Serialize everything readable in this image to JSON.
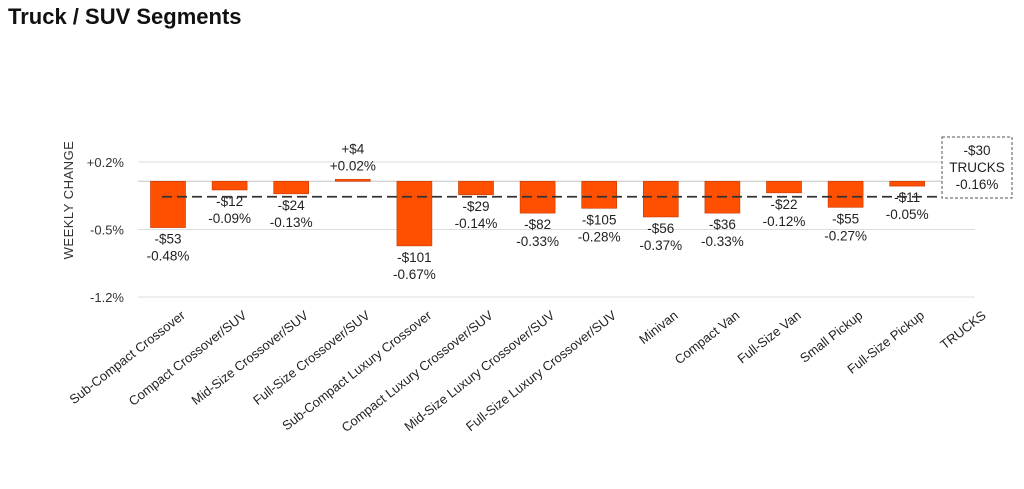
{
  "page": {
    "title": "Truck / SUV Segments"
  },
  "chart_data": {
    "type": "bar",
    "ylabel": "WEEKLY CHANGE",
    "y_ticks": [
      "+0.2%",
      "-0.5%",
      "-1.2%"
    ],
    "y_tick_values": [
      0.2,
      -0.5,
      -1.2
    ],
    "ylim": [
      -1.2,
      0.2
    ],
    "grid": true,
    "categories": [
      "Sub-Compact Crossover",
      "Compact Crossover/SUV",
      "Mid-Size Crossover/SUV",
      "Full-Size Crossover/SUV",
      "Sub-Compact Luxury Crossover",
      "Compact Luxury Crossover/SUV",
      "Mid-Size Luxury Crossover/SUV",
      "Full-Size Luxury Crossover/SUV",
      "Minivan",
      "Compact Van",
      "Full-Size Van",
      "Small Pickup",
      "Full-Size Pickup",
      "TRUCKS"
    ],
    "values": [
      -0.48,
      -0.09,
      -0.13,
      0.02,
      -0.67,
      -0.14,
      -0.33,
      -0.28,
      -0.37,
      -0.33,
      -0.12,
      -0.27,
      -0.05,
      -0.16
    ],
    "dollar_labels": [
      "-$53",
      "-$12",
      "-$24",
      "+$4",
      "-$101",
      "-$29",
      "-$82",
      "-$105",
      "-$56",
      "-$36",
      "-$22",
      "-$55",
      "-$11",
      "-$30"
    ],
    "pct_labels": [
      "-0.48%",
      "-0.09%",
      "-0.13%",
      "+0.02%",
      "-0.67%",
      "-0.14%",
      "-0.33%",
      "-0.28%",
      "-0.37%",
      "-0.33%",
      "-0.12%",
      "-0.27%",
      "-0.05%",
      "-0.16%"
    ],
    "summary_category": "TRUCKS",
    "summary_box": {
      "dollar": "-$30",
      "name": "TRUCKS",
      "pct": "-0.16%"
    },
    "average_line_value": -0.16,
    "bar_color": "#FF4F00",
    "bar_border_color": "#C43A00"
  }
}
